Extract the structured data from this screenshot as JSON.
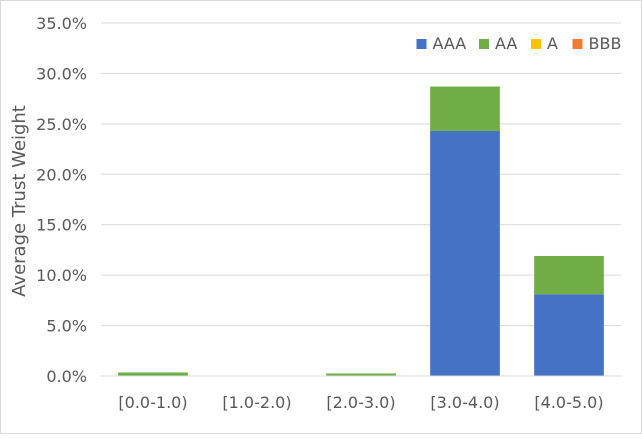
{
  "chart_data": {
    "type": "bar",
    "stacked": true,
    "ylabel": "Average Trust Weight",
    "xlabel": "",
    "ylim": [
      0,
      35
    ],
    "yticks": [
      "0.0%",
      "5.0%",
      "10.0%",
      "15.0%",
      "20.0%",
      "25.0%",
      "30.0%",
      "35.0%"
    ],
    "categories": [
      "[0.0-1.0)",
      "[1.0-2.0)",
      "[2.0-3.0)",
      "[3.0-4.0)",
      "[4.0-5.0)"
    ],
    "series": [
      {
        "name": "AAA",
        "color": "#4472c4",
        "values": [
          0.0,
          0.0,
          0.0,
          24.3,
          8.1
        ]
      },
      {
        "name": "AA",
        "color": "#70ad47",
        "values": [
          0.35,
          0.0,
          0.25,
          4.4,
          3.8
        ]
      },
      {
        "name": "A",
        "color": "#ffc000",
        "values": [
          0.0,
          0.0,
          0.0,
          0.0,
          0.0
        ]
      },
      {
        "name": "BBB",
        "color": "#ed7d31",
        "values": [
          0.0,
          0.0,
          0.0,
          0.0,
          0.0
        ]
      }
    ],
    "grid": true,
    "legend_position": "top-right"
  }
}
